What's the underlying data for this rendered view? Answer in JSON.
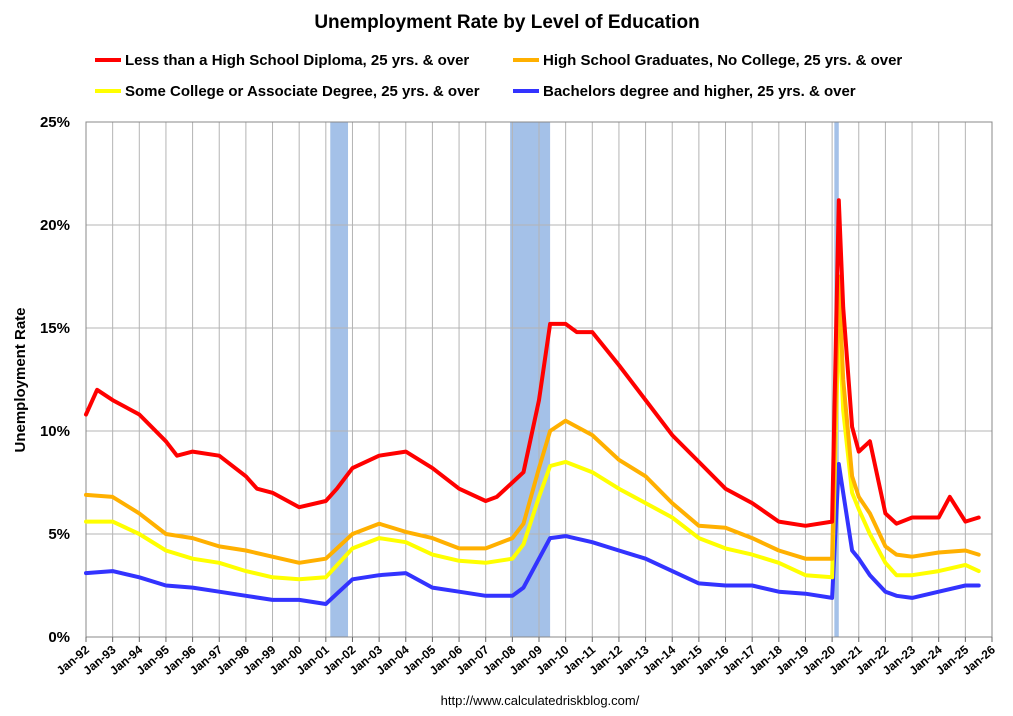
{
  "chart_data": {
    "type": "line",
    "title": "Unemployment Rate by Level of Education",
    "ylabel": "Unemployment Rate",
    "xlabel": "",
    "ylim": [
      0,
      25
    ],
    "y_ticks": [
      "0%",
      "5%",
      "10%",
      "15%",
      "20%",
      "25%"
    ],
    "x_ticks": [
      "Jan-92",
      "Jan-93",
      "Jan-94",
      "Jan-95",
      "Jan-96",
      "Jan-97",
      "Jan-98",
      "Jan-99",
      "Jan-00",
      "Jan-01",
      "Jan-02",
      "Jan-03",
      "Jan-04",
      "Jan-05",
      "Jan-06",
      "Jan-07",
      "Jan-08",
      "Jan-09",
      "Jan-10",
      "Jan-11",
      "Jan-12",
      "Jan-13",
      "Jan-14",
      "Jan-15",
      "Jan-16",
      "Jan-17",
      "Jan-18",
      "Jan-19",
      "Jan-20",
      "Jan-21",
      "Jan-22",
      "Jan-23",
      "Jan-24",
      "Jan-25",
      "Jan-26"
    ],
    "x_range": [
      "1992-01",
      "2026-01"
    ],
    "grid": true,
    "legend_position": "top",
    "source": "http://www.calculatedriskblog.com/",
    "recessions": [
      {
        "start": "2001-03",
        "end": "2001-11"
      },
      {
        "start": "2007-12",
        "end": "2009-06"
      },
      {
        "start": "2020-02",
        "end": "2020-04"
      }
    ],
    "recession_color": "#a4c1e8",
    "series": [
      {
        "name": "Less than a High School Diploma, 25 yrs. & over",
        "color": "#ff0000",
        "points": [
          [
            "1992-01",
            10.8
          ],
          [
            "1992-06",
            12.0
          ],
          [
            "1993-01",
            11.5
          ],
          [
            "1994-01",
            10.8
          ],
          [
            "1995-01",
            9.5
          ],
          [
            "1995-06",
            8.8
          ],
          [
            "1996-01",
            9.0
          ],
          [
            "1997-01",
            8.8
          ],
          [
            "1998-01",
            7.8
          ],
          [
            "1998-06",
            7.2
          ],
          [
            "1999-01",
            7.0
          ],
          [
            "2000-01",
            6.3
          ],
          [
            "2001-01",
            6.6
          ],
          [
            "2001-06",
            7.2
          ],
          [
            "2002-01",
            8.2
          ],
          [
            "2003-01",
            8.8
          ],
          [
            "2004-01",
            9.0
          ],
          [
            "2005-01",
            8.2
          ],
          [
            "2006-01",
            7.2
          ],
          [
            "2007-01",
            6.6
          ],
          [
            "2007-06",
            6.8
          ],
          [
            "2008-01",
            7.5
          ],
          [
            "2008-06",
            8.0
          ],
          [
            "2009-01",
            11.5
          ],
          [
            "2009-06",
            15.2
          ],
          [
            "2010-01",
            15.2
          ],
          [
            "2010-06",
            14.8
          ],
          [
            "2011-01",
            14.8
          ],
          [
            "2012-01",
            13.2
          ],
          [
            "2013-01",
            11.5
          ],
          [
            "2014-01",
            9.8
          ],
          [
            "2015-01",
            8.5
          ],
          [
            "2016-01",
            7.2
          ],
          [
            "2017-01",
            6.5
          ],
          [
            "2018-01",
            5.6
          ],
          [
            "2019-01",
            5.4
          ],
          [
            "2020-01",
            5.6
          ],
          [
            "2020-04",
            21.2
          ],
          [
            "2020-06",
            16.0
          ],
          [
            "2020-10",
            10.2
          ],
          [
            "2021-01",
            9.0
          ],
          [
            "2021-06",
            9.5
          ],
          [
            "2022-01",
            6.0
          ],
          [
            "2022-06",
            5.5
          ],
          [
            "2023-01",
            5.8
          ],
          [
            "2024-01",
            5.8
          ],
          [
            "2024-06",
            6.8
          ],
          [
            "2025-01",
            5.6
          ],
          [
            "2025-07",
            5.8
          ]
        ]
      },
      {
        "name": "High School Graduates, No College, 25 yrs. & over",
        "color": "#ffb000",
        "points": [
          [
            "1992-01",
            6.9
          ],
          [
            "1993-01",
            6.8
          ],
          [
            "1994-01",
            6.0
          ],
          [
            "1995-01",
            5.0
          ],
          [
            "1996-01",
            4.8
          ],
          [
            "1997-01",
            4.4
          ],
          [
            "1998-01",
            4.2
          ],
          [
            "1999-01",
            3.9
          ],
          [
            "2000-01",
            3.6
          ],
          [
            "2001-01",
            3.8
          ],
          [
            "2002-01",
            5.0
          ],
          [
            "2003-01",
            5.5
          ],
          [
            "2004-01",
            5.1
          ],
          [
            "2005-01",
            4.8
          ],
          [
            "2006-01",
            4.3
          ],
          [
            "2007-01",
            4.3
          ],
          [
            "2008-01",
            4.8
          ],
          [
            "2008-06",
            5.5
          ],
          [
            "2009-01",
            8.2
          ],
          [
            "2009-06",
            10.0
          ],
          [
            "2010-01",
            10.5
          ],
          [
            "2011-01",
            9.8
          ],
          [
            "2012-01",
            8.6
          ],
          [
            "2013-01",
            7.8
          ],
          [
            "2014-01",
            6.5
          ],
          [
            "2015-01",
            5.4
          ],
          [
            "2016-01",
            5.3
          ],
          [
            "2017-01",
            4.8
          ],
          [
            "2018-01",
            4.2
          ],
          [
            "2019-01",
            3.8
          ],
          [
            "2020-01",
            3.8
          ],
          [
            "2020-04",
            17.5
          ],
          [
            "2020-06",
            12.5
          ],
          [
            "2020-10",
            7.8
          ],
          [
            "2021-01",
            6.8
          ],
          [
            "2021-06",
            6.0
          ],
          [
            "2022-01",
            4.4
          ],
          [
            "2022-06",
            4.0
          ],
          [
            "2023-01",
            3.9
          ],
          [
            "2024-01",
            4.1
          ],
          [
            "2025-01",
            4.2
          ],
          [
            "2025-07",
            4.0
          ]
        ]
      },
      {
        "name": "Some College or Associate Degree, 25 yrs. & over",
        "color": "#ffff00",
        "points": [
          [
            "1992-01",
            5.6
          ],
          [
            "1993-01",
            5.6
          ],
          [
            "1994-01",
            5.0
          ],
          [
            "1995-01",
            4.2
          ],
          [
            "1996-01",
            3.8
          ],
          [
            "1997-01",
            3.6
          ],
          [
            "1998-01",
            3.2
          ],
          [
            "1999-01",
            2.9
          ],
          [
            "2000-01",
            2.8
          ],
          [
            "2001-01",
            2.9
          ],
          [
            "2002-01",
            4.3
          ],
          [
            "2003-01",
            4.8
          ],
          [
            "2004-01",
            4.6
          ],
          [
            "2005-01",
            4.0
          ],
          [
            "2006-01",
            3.7
          ],
          [
            "2007-01",
            3.6
          ],
          [
            "2008-01",
            3.8
          ],
          [
            "2008-06",
            4.5
          ],
          [
            "2009-01",
            6.8
          ],
          [
            "2009-06",
            8.3
          ],
          [
            "2010-01",
            8.5
          ],
          [
            "2011-01",
            8.0
          ],
          [
            "2012-01",
            7.2
          ],
          [
            "2013-01",
            6.5
          ],
          [
            "2014-01",
            5.8
          ],
          [
            "2015-01",
            4.8
          ],
          [
            "2016-01",
            4.3
          ],
          [
            "2017-01",
            4.0
          ],
          [
            "2018-01",
            3.6
          ],
          [
            "2019-01",
            3.0
          ],
          [
            "2020-01",
            2.9
          ],
          [
            "2020-04",
            15.6
          ],
          [
            "2020-06",
            11.0
          ],
          [
            "2020-10",
            7.0
          ],
          [
            "2021-01",
            6.2
          ],
          [
            "2021-06",
            5.0
          ],
          [
            "2022-01",
            3.6
          ],
          [
            "2022-06",
            3.0
          ],
          [
            "2023-01",
            3.0
          ],
          [
            "2024-01",
            3.2
          ],
          [
            "2025-01",
            3.5
          ],
          [
            "2025-07",
            3.2
          ]
        ]
      },
      {
        "name": "Bachelors degree and higher, 25 yrs. & over",
        "color": "#3333ff",
        "points": [
          [
            "1992-01",
            3.1
          ],
          [
            "1993-01",
            3.2
          ],
          [
            "1994-01",
            2.9
          ],
          [
            "1995-01",
            2.5
          ],
          [
            "1996-01",
            2.4
          ],
          [
            "1997-01",
            2.2
          ],
          [
            "1998-01",
            2.0
          ],
          [
            "1999-01",
            1.8
          ],
          [
            "2000-01",
            1.8
          ],
          [
            "2001-01",
            1.6
          ],
          [
            "2001-06",
            2.1
          ],
          [
            "2002-01",
            2.8
          ],
          [
            "2003-01",
            3.0
          ],
          [
            "2004-01",
            3.1
          ],
          [
            "2005-01",
            2.4
          ],
          [
            "2006-01",
            2.2
          ],
          [
            "2007-01",
            2.0
          ],
          [
            "2008-01",
            2.0
          ],
          [
            "2008-06",
            2.4
          ],
          [
            "2009-01",
            3.8
          ],
          [
            "2009-06",
            4.8
          ],
          [
            "2010-01",
            4.9
          ],
          [
            "2011-01",
            4.6
          ],
          [
            "2012-01",
            4.2
          ],
          [
            "2013-01",
            3.8
          ],
          [
            "2014-01",
            3.2
          ],
          [
            "2015-01",
            2.6
          ],
          [
            "2016-01",
            2.5
          ],
          [
            "2017-01",
            2.5
          ],
          [
            "2018-01",
            2.2
          ],
          [
            "2019-01",
            2.1
          ],
          [
            "2020-01",
            1.9
          ],
          [
            "2020-04",
            8.4
          ],
          [
            "2020-06",
            7.0
          ],
          [
            "2020-10",
            4.2
          ],
          [
            "2021-01",
            3.8
          ],
          [
            "2021-06",
            3.0
          ],
          [
            "2022-01",
            2.2
          ],
          [
            "2022-06",
            2.0
          ],
          [
            "2023-01",
            1.9
          ],
          [
            "2024-01",
            2.2
          ],
          [
            "2025-01",
            2.5
          ],
          [
            "2025-07",
            2.5
          ]
        ]
      }
    ]
  }
}
